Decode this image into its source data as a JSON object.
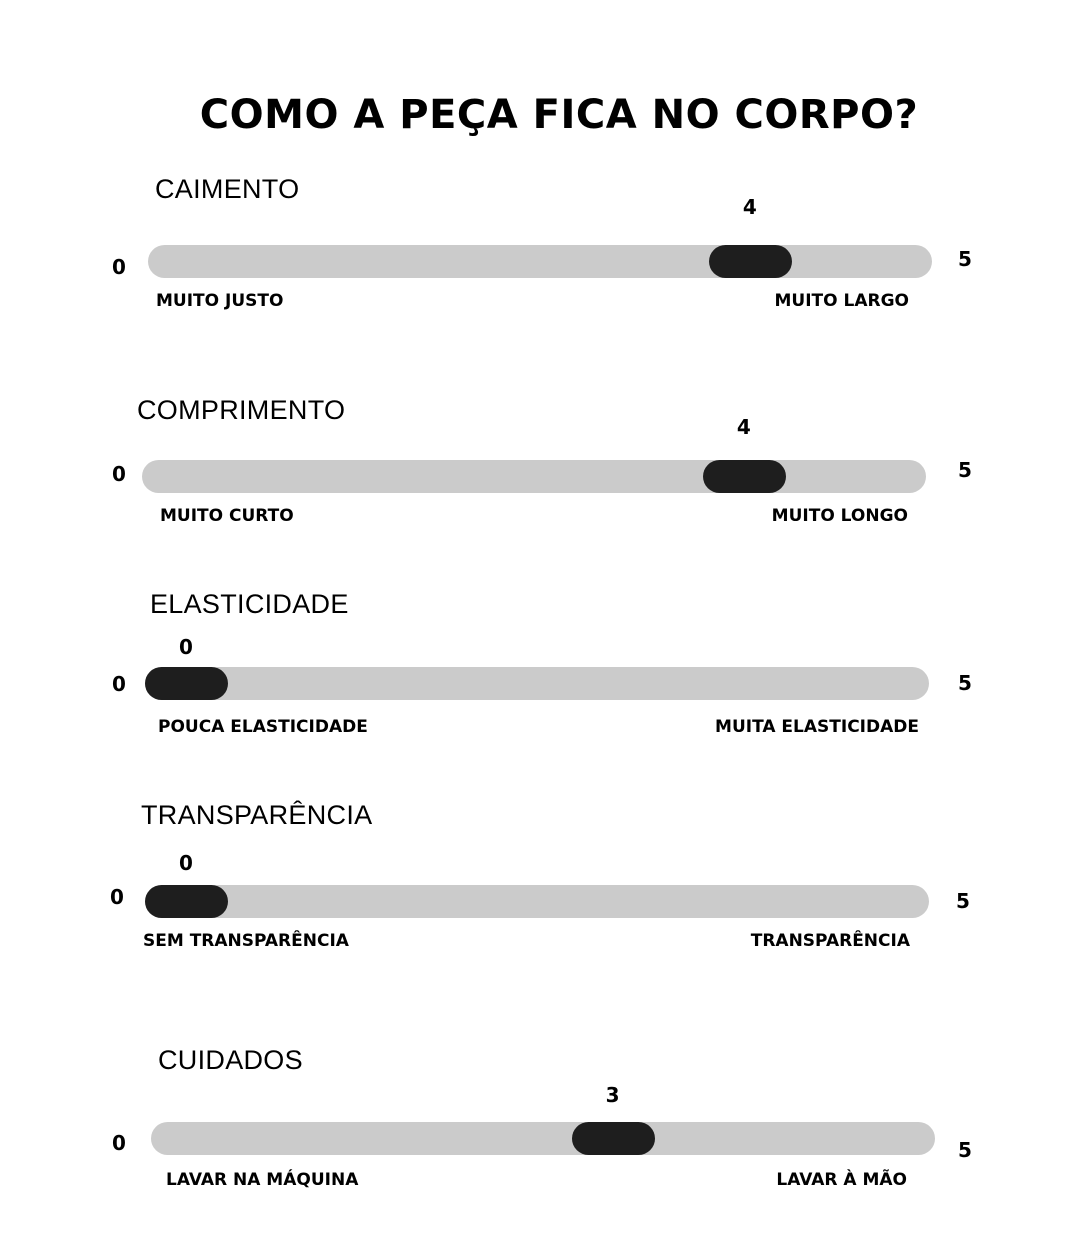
{
  "title": "COMO A PEÇA FICA NO CORPO?",
  "scale": {
    "min": 0,
    "max": 5,
    "min_label": "0",
    "max_label": "5"
  },
  "colors": {
    "track": "#cbcbcb",
    "thumb": "#1e1e1e"
  },
  "scales": [
    {
      "label": "CAIMENTO",
      "value": 4,
      "value_label": "4",
      "left": "MUITO JUSTO",
      "right": "MUITO LARGO"
    },
    {
      "label": "COMPRIMENTO",
      "value": 4,
      "value_label": "4",
      "left": "MUITO CURTO",
      "right": "MUITO LONGO"
    },
    {
      "label": "ELASTICIDADE",
      "value": 0,
      "value_label": "0",
      "left": "POUCA ELASTICIDADE",
      "right": "MUITA ELASTICIDADE"
    },
    {
      "label": "TRANSPARÊNCIA",
      "value": 0,
      "value_label": "0",
      "left": "SEM TRANSPARÊNCIA",
      "right": "TRANSPARÊNCIA"
    },
    {
      "label": "CUIDADOS",
      "value": 3,
      "value_label": "3",
      "left": "LAVAR NA MÁQUINA",
      "right": "LAVAR À MÃO"
    }
  ]
}
